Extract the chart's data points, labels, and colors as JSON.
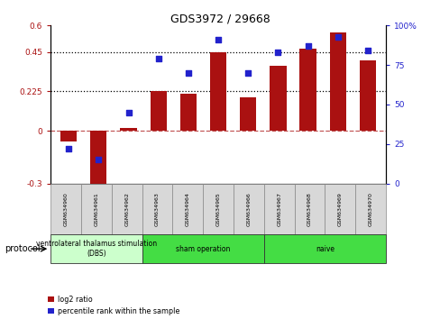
{
  "title": "GDS3972 / 29668",
  "samples": [
    "GSM634960",
    "GSM634961",
    "GSM634962",
    "GSM634963",
    "GSM634964",
    "GSM634965",
    "GSM634966",
    "GSM634967",
    "GSM634968",
    "GSM634969",
    "GSM634970"
  ],
  "log2_ratio": [
    -0.06,
    -0.33,
    0.015,
    0.225,
    0.21,
    0.45,
    0.19,
    0.37,
    0.47,
    0.56,
    0.4
  ],
  "percentile_rank": [
    22,
    15,
    45,
    79,
    70,
    91,
    70,
    83,
    87,
    93,
    84
  ],
  "bar_color": "#AA1111",
  "dot_color": "#2222CC",
  "left_ylim": [
    -0.3,
    0.6
  ],
  "right_ylim": [
    0,
    100
  ],
  "left_yticks": [
    -0.3,
    0,
    0.225,
    0.45,
    0.6
  ],
  "right_yticks": [
    0,
    25,
    50,
    75,
    100
  ],
  "left_ytick_labels": [
    "-0.3",
    "0",
    "0.225",
    "0.45",
    "0.6"
  ],
  "right_ytick_labels": [
    "0",
    "25",
    "50",
    "75",
    "100%"
  ],
  "hlines": [
    0.225,
    0.45
  ],
  "groups": [
    {
      "label": "ventrolateral thalamus stimulation\n(DBS)",
      "start": 0,
      "end": 3,
      "color": "#ccffcc"
    },
    {
      "label": "sham operation",
      "start": 3,
      "end": 7,
      "color": "#44dd44"
    },
    {
      "label": "naive",
      "start": 7,
      "end": 11,
      "color": "#44dd44"
    }
  ],
  "legend_bar_label": "log2 ratio",
  "legend_dot_label": "percentile rank within the sample",
  "protocol_label": "protocol",
  "bg_color": "#ffffff",
  "plot_bg": "#ffffff",
  "border_color": "#000000"
}
